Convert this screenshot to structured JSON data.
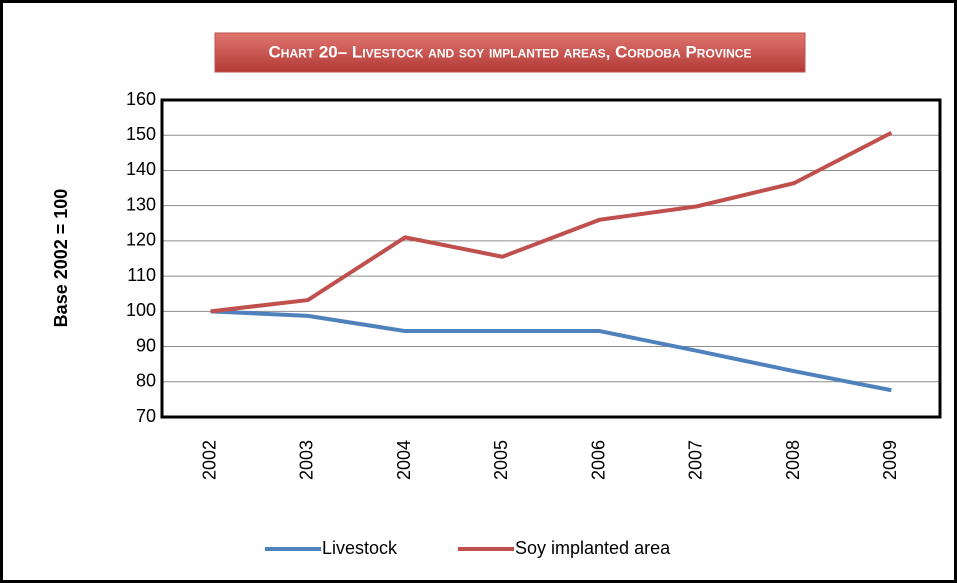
{
  "chart_data": {
    "type": "line",
    "title": "Chart 20– Livestock and soy implanted areas, Cordoba Province",
    "y_label": "Base 2002 = 100",
    "categories": [
      "2002",
      "2003",
      "2004",
      "2005",
      "2006",
      "2007",
      "2008",
      "2009"
    ],
    "series": [
      {
        "name": "Livestock",
        "color": "#4f81bd",
        "values": [
          100,
          98.7,
          94.4,
          94.4,
          94.4,
          88.8,
          83,
          77.6
        ]
      },
      {
        "name": "Soy implanted area",
        "color": "#c0504d",
        "values": [
          100,
          103.2,
          121,
          115.5,
          126,
          129.8,
          136.4,
          150.7
        ]
      }
    ],
    "ylim": [
      70,
      160
    ],
    "yticks": [
      70,
      80,
      90,
      100,
      110,
      120,
      130,
      140,
      150,
      160
    ],
    "grid": true,
    "legend": "bottom"
  }
}
